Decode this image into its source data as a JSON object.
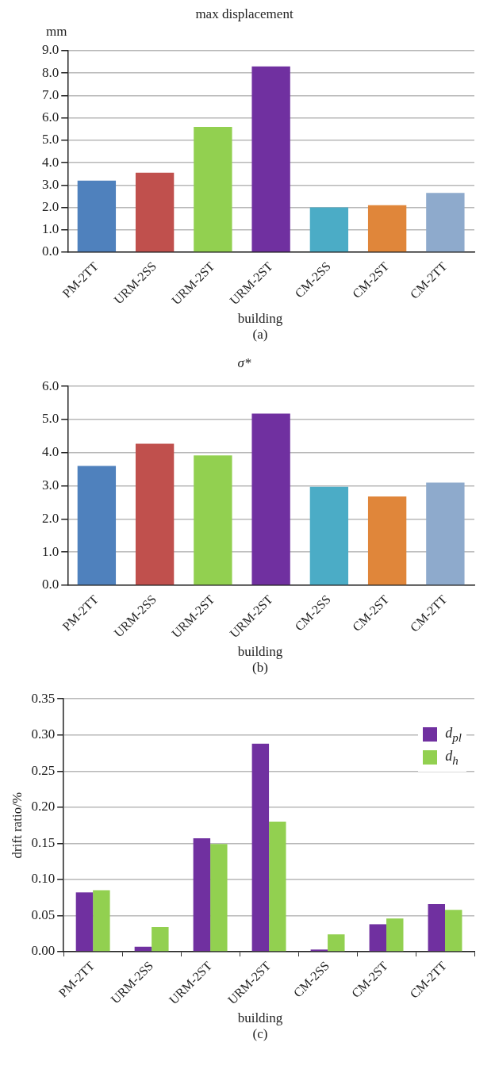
{
  "chart_data": [
    {
      "type": "bar",
      "title": "max displacement",
      "ylabel": "mm",
      "xlabel": "building",
      "annotations": [
        "(a)"
      ],
      "categories": [
        "PM-2TT",
        "URM-2SS",
        "URM-2ST",
        "URM-2ST",
        "CM-2SS",
        "CM-2ST",
        "CM-2TT"
      ],
      "values": [
        3.2,
        3.55,
        5.6,
        8.3,
        2.0,
        2.1,
        2.65
      ],
      "colors": [
        "#4f81bd",
        "#c0504d",
        "#92d050",
        "#7030a0",
        "#4bacc6",
        "#e0863a",
        "#8eaacc"
      ],
      "ylim": [
        0,
        9
      ],
      "yticks": [
        {
          "value": 0,
          "label": "0.0"
        },
        {
          "value": 1,
          "label": "1.0"
        },
        {
          "value": 2,
          "label": "2.0"
        },
        {
          "value": 3,
          "label": "3.0"
        },
        {
          "value": 4,
          "label": "4.0"
        },
        {
          "value": 5,
          "label": "5.0"
        },
        {
          "value": 6,
          "label": "6.0"
        },
        {
          "value": 7,
          "label": "7.0"
        },
        {
          "value": 8,
          "label": "8.0"
        },
        {
          "value": 9,
          "label": "9.0"
        }
      ],
      "grid": "y",
      "legend": false
    },
    {
      "type": "bar",
      "title": "σ*",
      "xlabel": "building",
      "annotations": [
        "(b)"
      ],
      "categories": [
        "PM-2TT",
        "URM-2SS",
        "URM-2ST",
        "URM-2ST",
        "CM-2SS",
        "CM-2ST",
        "CM-2TT"
      ],
      "values": [
        3.6,
        4.27,
        3.92,
        5.18,
        2.97,
        2.68,
        3.1
      ],
      "colors": [
        "#4f81bd",
        "#c0504d",
        "#92d050",
        "#7030a0",
        "#4bacc6",
        "#e0863a",
        "#8eaacc"
      ],
      "ylim": [
        0,
        6
      ],
      "yticks": [
        {
          "value": 0,
          "label": "0.0"
        },
        {
          "value": 1,
          "label": "1.0"
        },
        {
          "value": 2,
          "label": "2.0"
        },
        {
          "value": 3,
          "label": "3.0"
        },
        {
          "value": 4,
          "label": "4.0"
        },
        {
          "value": 5,
          "label": "5.0"
        },
        {
          "value": 6,
          "label": "6.0"
        }
      ],
      "grid": "y",
      "legend": false
    },
    {
      "type": "bar",
      "ylabel": "drift ratio/%",
      "xlabel": "building",
      "annotations": [
        "(c)"
      ],
      "categories": [
        "PM-2TT",
        "URM-2SS",
        "URM-2ST",
        "URM-2ST",
        "CM-2SS",
        "CM-2ST",
        "CM-2TT"
      ],
      "series": [
        {
          "name": "d$_{pl}$",
          "color": "#7030a0",
          "values": [
            0.082,
            0.007,
            0.157,
            0.288,
            0.003,
            0.038,
            0.066
          ]
        },
        {
          "name": "d$_{h}$",
          "color": "#92d050",
          "values": [
            0.085,
            0.034,
            0.149,
            0.18,
            0.024,
            0.046,
            0.058
          ]
        }
      ],
      "ylim": [
        0,
        0.35
      ],
      "yticks": [
        {
          "value": 0,
          "label": "0.00"
        },
        {
          "value": 0.05,
          "label": "0.05"
        },
        {
          "value": 0.1,
          "label": "0.10"
        },
        {
          "value": 0.15,
          "label": "0.15"
        },
        {
          "value": 0.2,
          "label": "0.20"
        },
        {
          "value": 0.25,
          "label": "0.25"
        },
        {
          "value": 0.3,
          "label": "0.30"
        },
        {
          "value": 0.35,
          "label": "0.35"
        }
      ],
      "grid": "y",
      "legend": "top right"
    }
  ]
}
